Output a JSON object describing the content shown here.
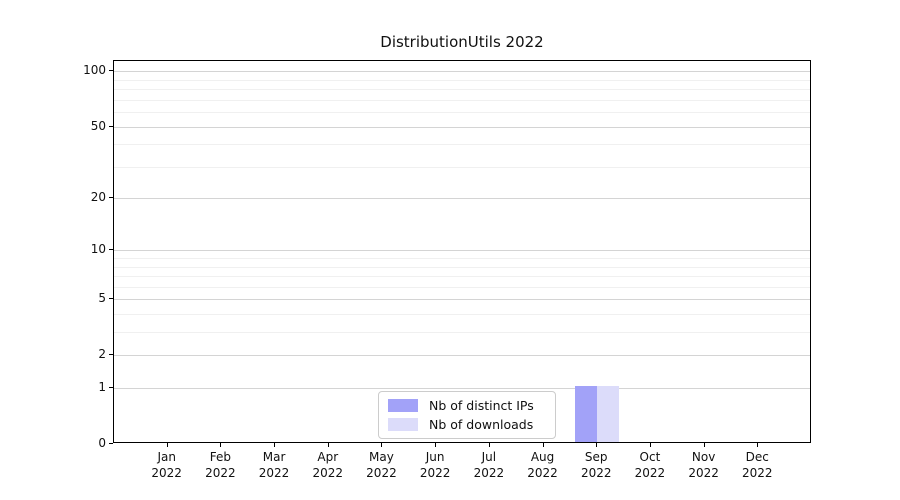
{
  "chart_data": {
    "type": "bar",
    "title": "DistributionUtils 2022",
    "xlabel": "",
    "ylabel": "",
    "x_ticklabels": [
      [
        "Jan",
        "2022"
      ],
      [
        "Feb",
        "2022"
      ],
      [
        "Mar",
        "2022"
      ],
      [
        "Apr",
        "2022"
      ],
      [
        "May",
        "2022"
      ],
      [
        "Jun",
        "2022"
      ],
      [
        "Jul",
        "2022"
      ],
      [
        "Aug",
        "2022"
      ],
      [
        "Sep",
        "2022"
      ],
      [
        "Oct",
        "2022"
      ],
      [
        "Nov",
        "2022"
      ],
      [
        "Dec",
        "2022"
      ]
    ],
    "series": [
      {
        "name": "Nb of distinct IPs",
        "color": "#a2a2f8",
        "values": [
          0,
          0,
          0,
          0,
          0,
          0,
          0,
          0,
          1,
          0,
          0,
          0
        ]
      },
      {
        "name": "Nb of downloads",
        "color": "#dcdcfa",
        "values": [
          0,
          0,
          0,
          0,
          0,
          0,
          0,
          0,
          1,
          0,
          0,
          0
        ]
      }
    ],
    "y_scale": "log1p",
    "ylim": [
      0,
      114
    ],
    "y_ticks": [
      0,
      1,
      2,
      5,
      10,
      20,
      50,
      100
    ],
    "y_minor_ticks": [
      3,
      4,
      6,
      7,
      8,
      9,
      30,
      40,
      60,
      70,
      80,
      90
    ],
    "grid": "horizontal",
    "legend_position": "lower center",
    "style": {
      "grid_major_color": "#d4d4d4",
      "grid_minor_color": "#f0f0f0",
      "spine_color": "#000000",
      "text_color": "#111111",
      "background": "#ffffff"
    }
  }
}
